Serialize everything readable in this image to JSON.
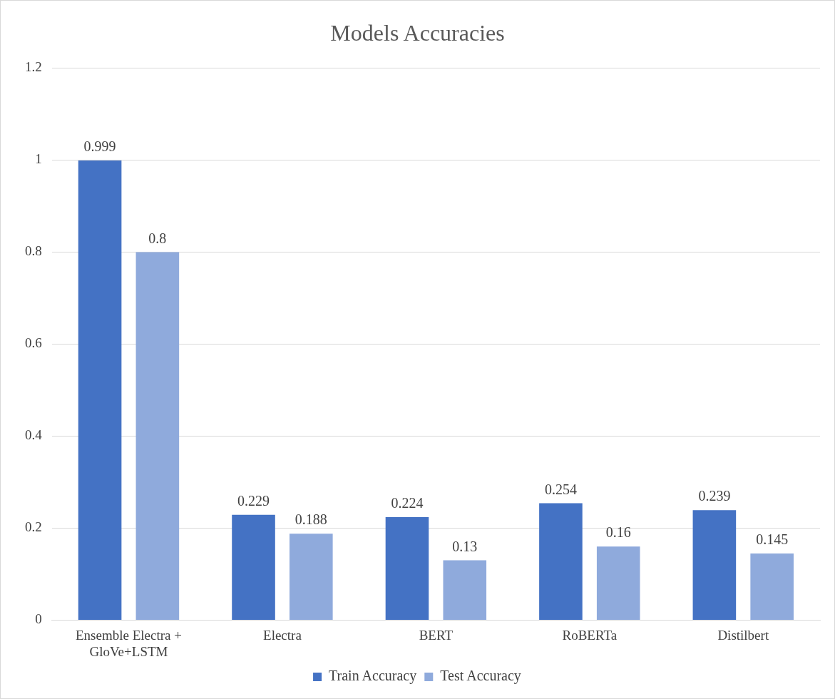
{
  "chart_data": {
    "type": "bar",
    "title": "Models Accuracies",
    "categories": [
      "Ensemble Electra + GloVe+LSTM",
      "Electra",
      "BERT",
      "RoBERTa",
      "Distilbert"
    ],
    "series": [
      {
        "name": "Train Accuracy",
        "color": "#4472c4",
        "values": [
          0.999,
          0.229,
          0.224,
          0.254,
          0.239
        ]
      },
      {
        "name": "Test Accuracy",
        "color": "#8faadc",
        "values": [
          0.8,
          0.188,
          0.13,
          0.16,
          0.145
        ]
      }
    ],
    "ylim": [
      0,
      1.2
    ],
    "yticks": [
      0,
      0.2,
      0.4,
      0.6,
      0.8,
      1,
      1.2
    ],
    "grid": "y",
    "legend": "bottom",
    "data_labels": true
  }
}
